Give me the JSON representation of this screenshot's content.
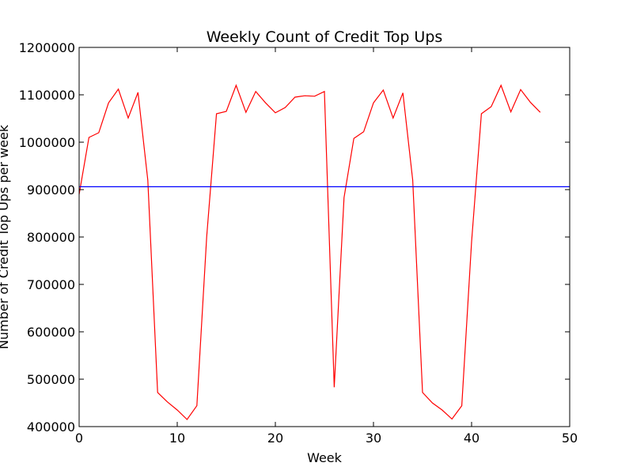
{
  "chart_data": {
    "type": "line",
    "title": "Weekly Count of Credit Top Ups",
    "xlabel": "Week",
    "ylabel": "Number of Credit Top Ups per week",
    "xlim": [
      0,
      50
    ],
    "ylim": [
      400000,
      1200000
    ],
    "x_ticks": [
      0,
      10,
      20,
      30,
      40,
      50
    ],
    "y_ticks": [
      400000,
      500000,
      600000,
      700000,
      800000,
      900000,
      1000000,
      1100000,
      1200000
    ],
    "grid": false,
    "series": [
      {
        "color": "#ff0000",
        "x": [
          0,
          1,
          2,
          3,
          4,
          5,
          6,
          7,
          8,
          9,
          10,
          11,
          12,
          13,
          14,
          15,
          16,
          17,
          18,
          19,
          20,
          21,
          22,
          23,
          24,
          25,
          26,
          27,
          28,
          29,
          30,
          31,
          32,
          33,
          34,
          35,
          36,
          37,
          38,
          39,
          40,
          41,
          42,
          43,
          44,
          45,
          46,
          47
        ],
        "values": [
          890000,
          1010000,
          1020000,
          1083000,
          1112000,
          1051000,
          1105000,
          920000,
          472000,
          452000,
          435000,
          415000,
          444000,
          800000,
          1060000,
          1065000,
          1120000,
          1063000,
          1107000,
          1083000,
          1062000,
          1073000,
          1095000,
          1098000,
          1097000,
          1107000,
          483000,
          883000,
          1008000,
          1022000,
          1083000,
          1110000,
          1051000,
          1104000,
          920000,
          472000,
          450000,
          435000,
          416000,
          444000,
          790000,
          1060000,
          1075000,
          1120000,
          1064000,
          1111000,
          1084000,
          1063000
        ]
      },
      {
        "color": "#0000ff",
        "x": [
          0,
          50
        ],
        "values": [
          906000,
          906000
        ]
      }
    ]
  }
}
